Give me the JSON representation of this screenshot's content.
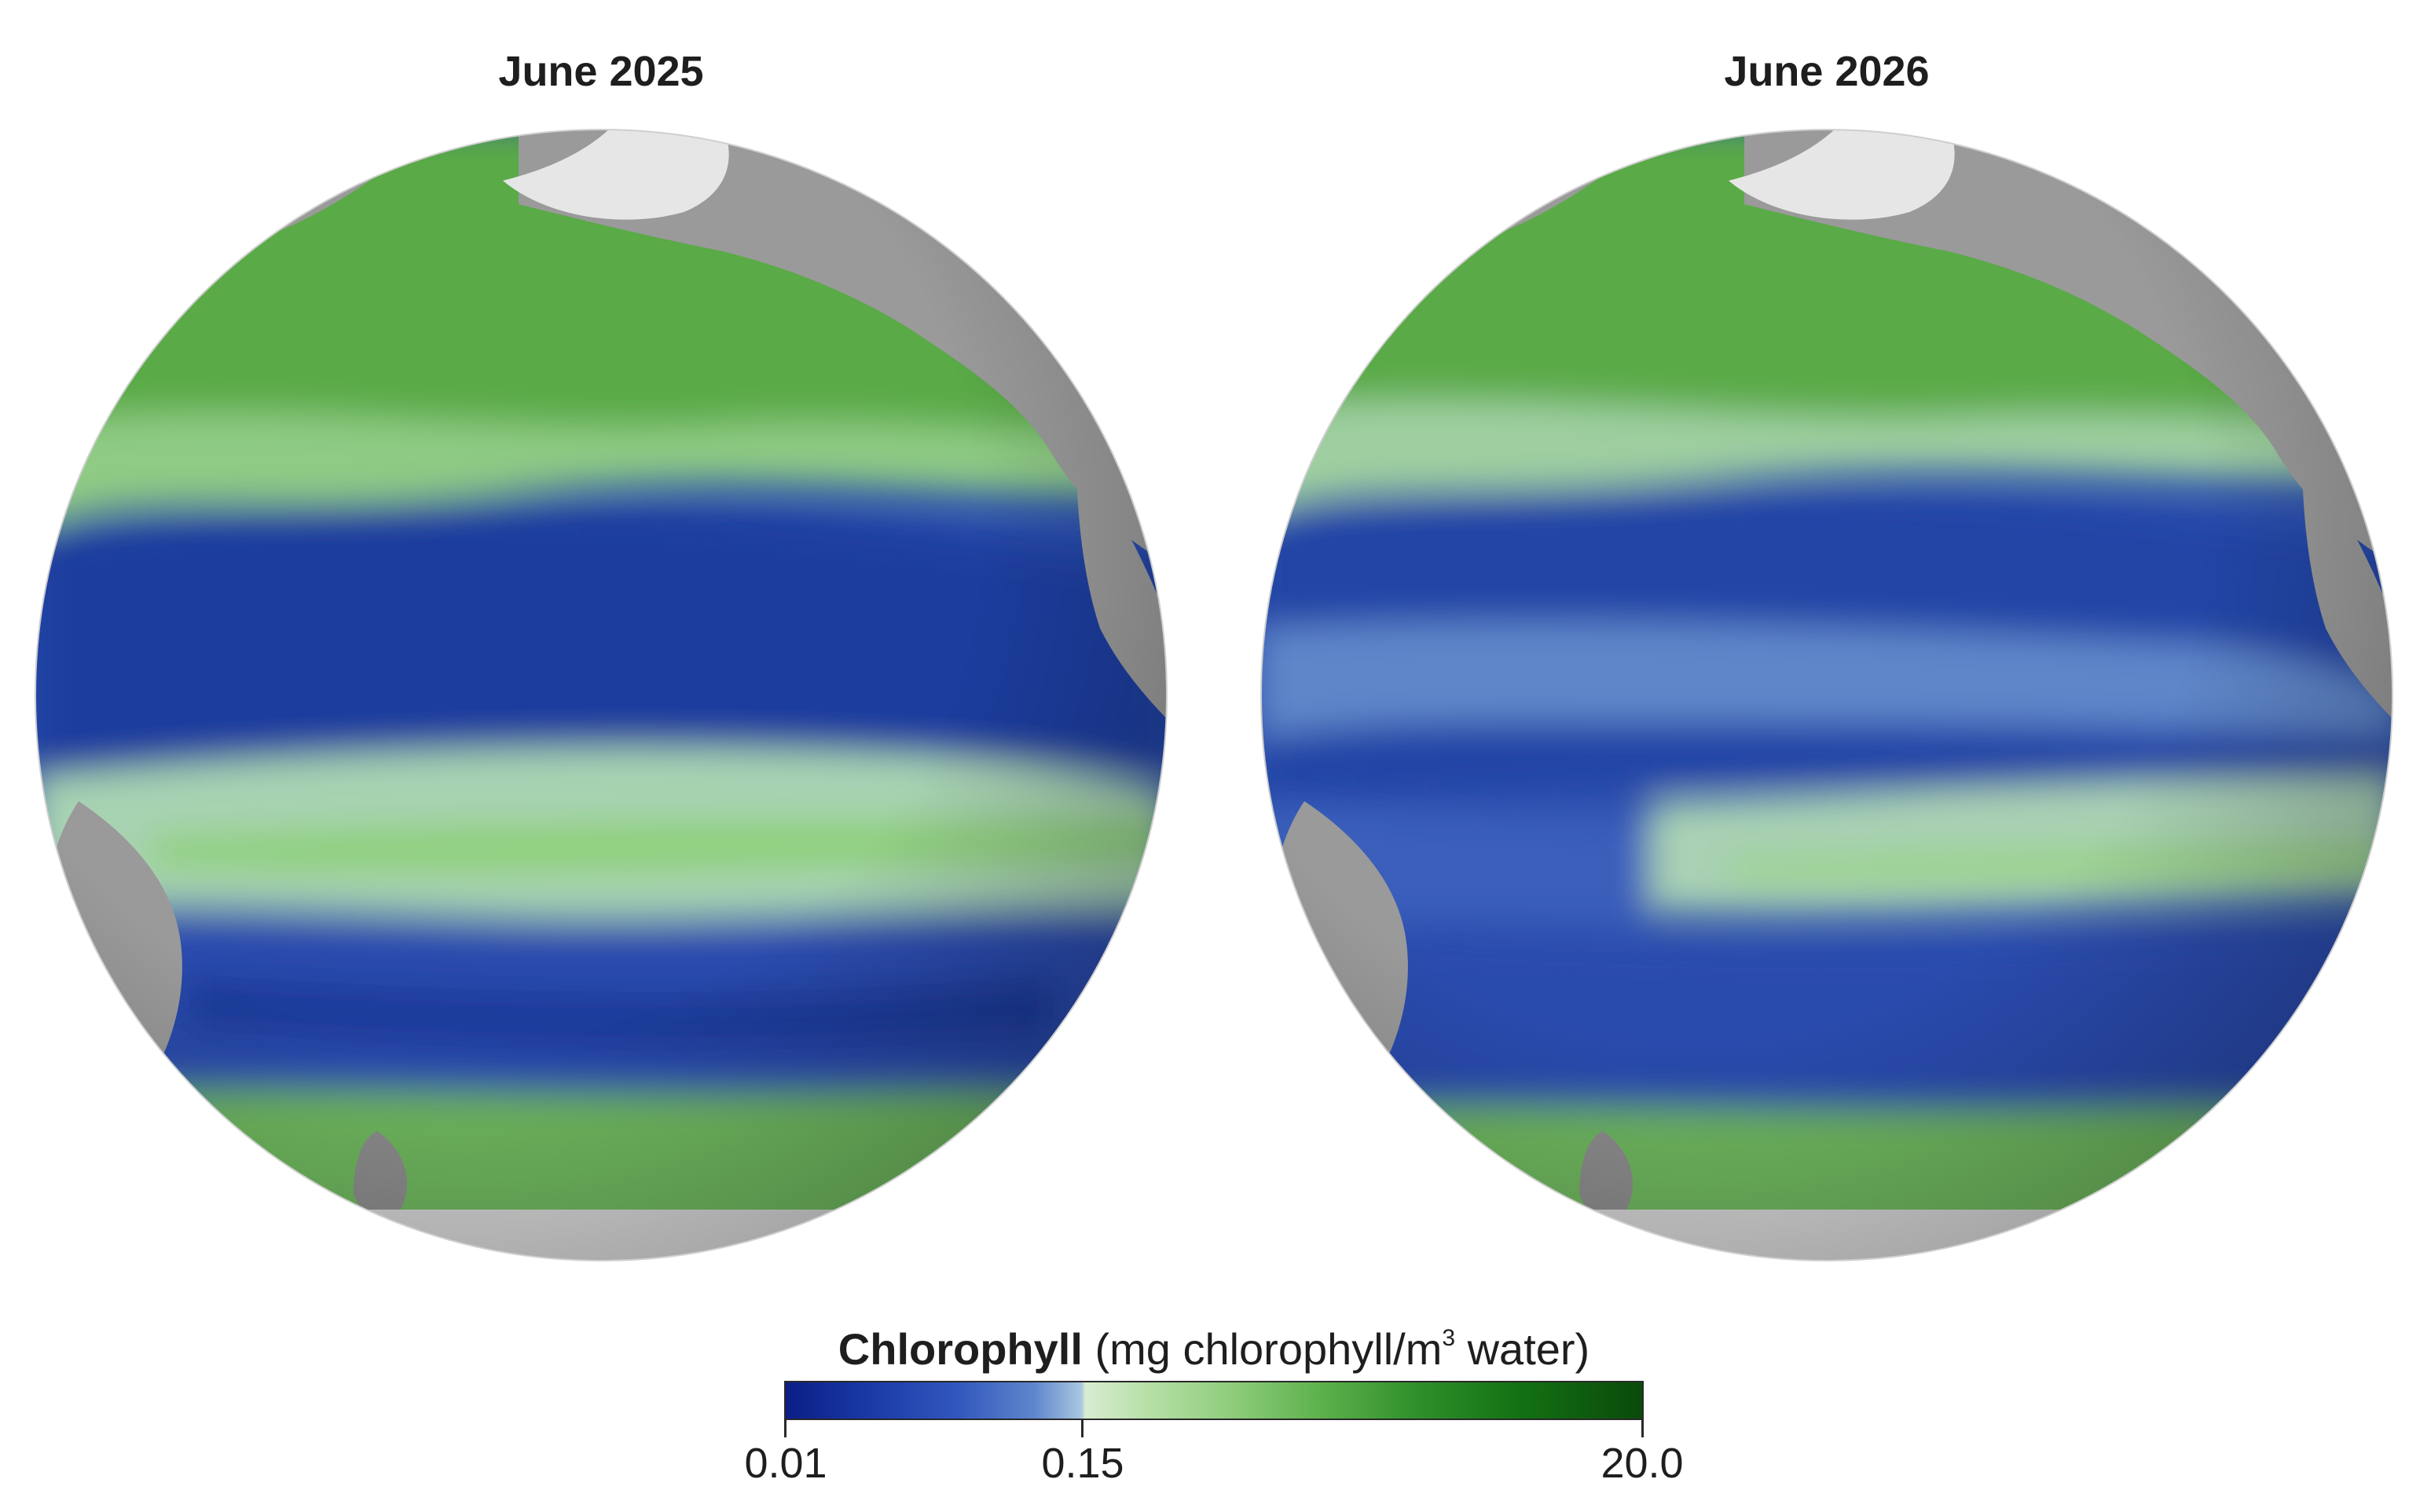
{
  "panels": [
    {
      "title": "June 2025"
    },
    {
      "title": "June 2026"
    }
  ],
  "legend": {
    "label_bold": "Chlorophyll",
    "label_units_prefix": " (mg chlorophyll/m",
    "label_units_sup": "3",
    "label_units_suffix": " water)",
    "ticks": [
      "0.01",
      "0.15",
      "20.0"
    ]
  },
  "colors": {
    "low": "#0b1e86",
    "mid": "#d8ecd2",
    "high": "#0a4a0b",
    "land": "#9a9a9a",
    "ice": "#e8e8e8"
  }
}
